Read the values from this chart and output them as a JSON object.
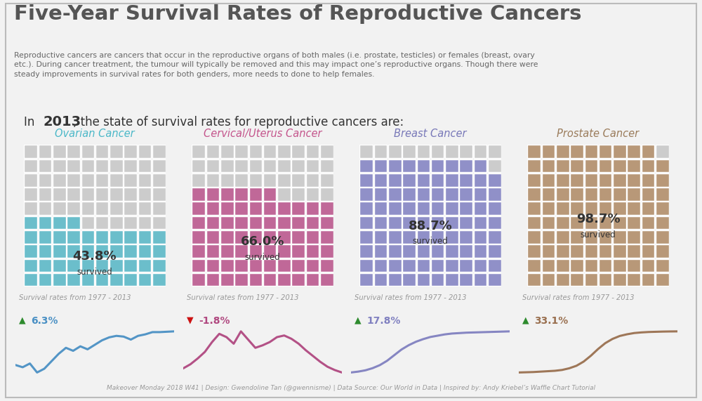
{
  "title": "Five-Year Survival Rates of Reproductive Cancers",
  "subtitle": "Reproductive cancers are cancers that occur in the reproductive organs of both males (i.e. prostate, testicles) or females (breast, ovary\netc.). During cancer treatment, the tumour will typically be removed and this may impact one’s reproductive organs. Though there were\nsteady improvements in survival rates for both genders, more needs to done to help females.",
  "footer": "Makeover Monday 2018 W41 | Design: Gwendoline Tan (@gwennisme) | Data Source: Our World in Data | Inspired by: Andy Kriebel’s Waffle Chart Tutorial",
  "cancers": [
    {
      "name": "Ovarian Cancer",
      "name_color": "#4BB8C8",
      "survival_rate": 43.8,
      "grid_color": "#6BBECB",
      "bg_color": "#C5C5C5",
      "change": 6.3,
      "change_positive": true,
      "line_color": "#4A90C4",
      "line_data": [
        0.55,
        0.52,
        0.57,
        0.45,
        0.5,
        0.6,
        0.7,
        0.78,
        0.74,
        0.8,
        0.76,
        0.82,
        0.88,
        0.92,
        0.94,
        0.93,
        0.89,
        0.94,
        0.96,
        0.99,
        0.99,
        0.995,
        1.0
      ]
    },
    {
      "name": "Cervical/Uterus Cancer",
      "name_color": "#C4558C",
      "survival_rate": 66.0,
      "grid_color": "#C06898",
      "bg_color": "#C5C5C5",
      "change": -1.8,
      "change_positive": false,
      "line_color": "#B04880",
      "line_data": [
        0.5,
        0.55,
        0.62,
        0.7,
        0.82,
        0.92,
        0.88,
        0.8,
        0.95,
        0.85,
        0.75,
        0.78,
        0.82,
        0.88,
        0.9,
        0.86,
        0.8,
        0.72,
        0.65,
        0.58,
        0.52,
        0.48,
        0.45
      ]
    },
    {
      "name": "Breast Cancer",
      "name_color": "#7878B8",
      "survival_rate": 88.7,
      "grid_color": "#9090C8",
      "bg_color": "#C5C5C5",
      "change": 17.8,
      "change_positive": true,
      "line_color": "#8080C0",
      "line_data": [
        0.05,
        0.07,
        0.1,
        0.15,
        0.22,
        0.32,
        0.45,
        0.58,
        0.68,
        0.76,
        0.82,
        0.87,
        0.9,
        0.93,
        0.95,
        0.96,
        0.97,
        0.975,
        0.98,
        0.985,
        0.99,
        0.995,
        1.0
      ]
    },
    {
      "name": "Prostate Cancer",
      "name_color": "#9A7B5A",
      "survival_rate": 98.7,
      "grid_color": "#B89878",
      "bg_color": "#C5C5C5",
      "change": 33.1,
      "change_positive": true,
      "line_color": "#9A7050",
      "line_data": [
        0.02,
        0.025,
        0.03,
        0.04,
        0.05,
        0.06,
        0.08,
        0.12,
        0.18,
        0.28,
        0.42,
        0.58,
        0.72,
        0.82,
        0.89,
        0.93,
        0.96,
        0.975,
        0.985,
        0.99,
        0.995,
        0.998,
        1.0
      ]
    }
  ],
  "grid_rows": 10,
  "grid_cols": 10,
  "bg_color": "#F2F2F2",
  "title_color": "#555555",
  "subtitle_color": "#666666",
  "subtitle2_color": "#333333",
  "footer_color": "#999999"
}
